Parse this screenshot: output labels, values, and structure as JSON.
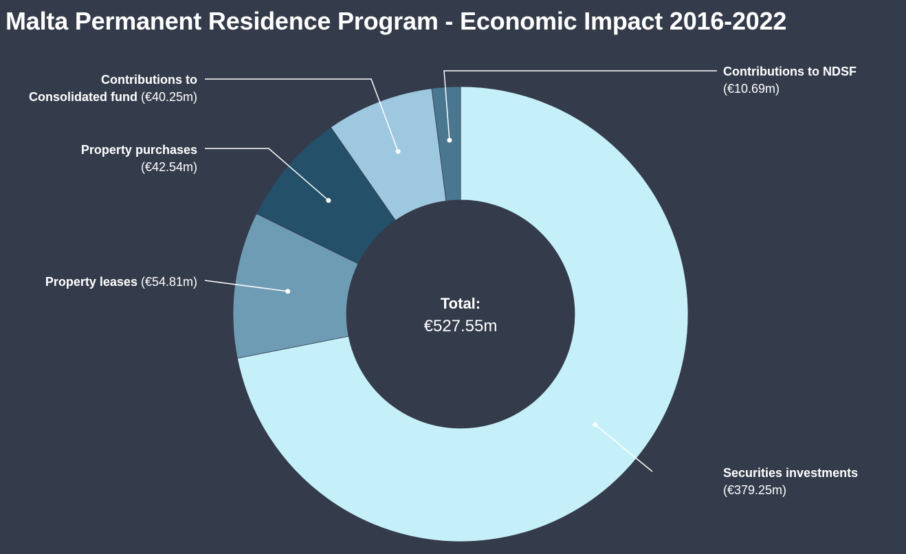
{
  "chart_data": {
    "type": "pie",
    "title": "Malta Permanent Residence Program - Economic Impact 2016-2022",
    "center_label": "Total:",
    "center_value": "€527.55m",
    "slices": [
      {
        "label": "Securities investments",
        "value": 379.25,
        "value_text": "(€379.25m)",
        "name_lines": [
          "Securities investments"
        ],
        "color": "#c6f0f9"
      },
      {
        "label": "Property leases",
        "value": 54.81,
        "value_text": "(€54.81m)",
        "name_lines": [
          "Property leases"
        ],
        "color": "#6f9cb5"
      },
      {
        "label": "Property purchases",
        "value": 42.54,
        "value_text": "(€42.54m)",
        "name_lines": [
          "Property purchases"
        ],
        "color": "#245069"
      },
      {
        "label": "Contributions to Consolidated fund",
        "value": 40.25,
        "value_text": "(€40.25m)",
        "name_lines": [
          "Contributions to",
          "Consolidated fund"
        ],
        "color": "#9ec8e0"
      },
      {
        "label": "Contributions to NDSF",
        "value": 10.69,
        "value_text": "(€10.69m)",
        "name_lines": [
          "Contributions to NDSF"
        ],
        "color": "#4a7790"
      }
    ]
  }
}
